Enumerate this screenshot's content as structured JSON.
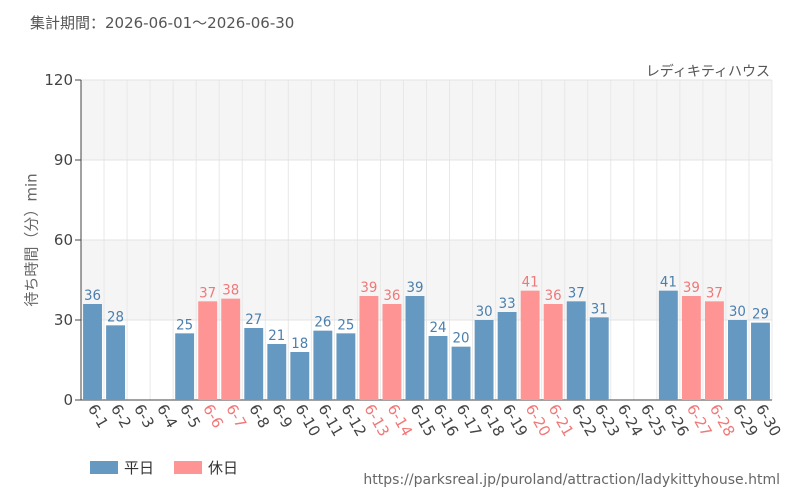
{
  "period_label": "集計期間：2026-06-01〜2026-06-30",
  "attraction_name": "レディキティハウス",
  "source_url": "https://parksreal.jp/puroland/attraction/ladykittyhouse.html",
  "colors": {
    "weekday": "#6699c2",
    "holiday": "#ff9494",
    "weekday_text": "#4a7fae",
    "holiday_text": "#f07878"
  },
  "chart_data": {
    "type": "bar",
    "ylabel": "待ち時間（分）min",
    "ylim": [
      0,
      120
    ],
    "yticks": [
      0,
      30,
      60,
      90,
      120
    ],
    "grid": true,
    "legend_position": "bottom-left",
    "categories": [
      "6-1",
      "6-2",
      "6-3",
      "6-4",
      "6-5",
      "6-6",
      "6-7",
      "6-8",
      "6-9",
      "6-10",
      "6-11",
      "6-12",
      "6-13",
      "6-14",
      "6-15",
      "6-16",
      "6-17",
      "6-18",
      "6-19",
      "6-20",
      "6-21",
      "6-22",
      "6-23",
      "6-24",
      "6-25",
      "6-26",
      "6-27",
      "6-28",
      "6-29",
      "6-30"
    ],
    "series": [
      {
        "name": "平日",
        "values": [
          36,
          28,
          null,
          null,
          25,
          null,
          null,
          27,
          21,
          18,
          26,
          25,
          null,
          null,
          39,
          24,
          20,
          30,
          33,
          null,
          null,
          37,
          31,
          null,
          null,
          41,
          null,
          null,
          30,
          29
        ]
      },
      {
        "name": "休日",
        "values": [
          null,
          null,
          null,
          null,
          null,
          37,
          38,
          null,
          null,
          null,
          null,
          null,
          39,
          36,
          null,
          null,
          null,
          null,
          null,
          41,
          36,
          null,
          null,
          null,
          null,
          null,
          39,
          37,
          null,
          null
        ]
      }
    ]
  }
}
